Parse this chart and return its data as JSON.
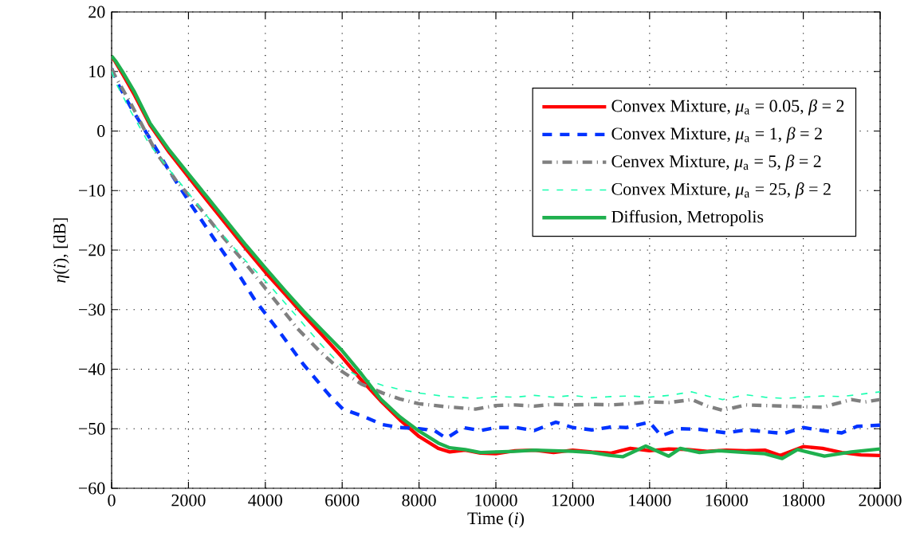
{
  "chart_data": {
    "type": "line",
    "xlabel": "Time (*i*)",
    "ylabel": "*η*(*i*), [dB]",
    "xlim": [
      0,
      20000
    ],
    "ylim": [
      -60,
      20
    ],
    "xticks": [
      0,
      2000,
      4000,
      6000,
      8000,
      10000,
      12000,
      14000,
      16000,
      18000,
      20000
    ],
    "yticks": [
      {
        "value": -60,
        "label": "−60"
      },
      {
        "value": -50,
        "label": "−50"
      },
      {
        "value": -40,
        "label": "−40"
      },
      {
        "value": -30,
        "label": "−30"
      },
      {
        "value": -20,
        "label": "−20"
      },
      {
        "value": -10,
        "label": "−10"
      },
      0,
      10,
      20
    ],
    "grid": true,
    "legend": "top right",
    "marker": "none",
    "series": [
      {
        "name": "Convex Mixture, *μ*$_{a}$ = 0.05, *β* = 2",
        "color": "#ff0000",
        "line_style": "solid",
        "x": [
          0,
          100,
          300,
          600,
          1000,
          1500,
          2000,
          2500,
          3000,
          3500,
          4000,
          4500,
          5000,
          5500,
          6000,
          6500,
          7000,
          7500,
          8000,
          8500,
          8800,
          9200,
          9600,
          10000,
          10500,
          11000,
          11500,
          12000,
          12500,
          13000,
          13500,
          14000,
          14500,
          15000,
          15500,
          16000,
          16500,
          17000,
          17400,
          18000,
          18500,
          19000,
          19500,
          20000
        ],
        "values": [
          12.5,
          11.6,
          9.4,
          6.0,
          1.0,
          -3.6,
          -7.7,
          -11.8,
          -15.8,
          -19.8,
          -23.7,
          -27.3,
          -30.9,
          -34.4,
          -38.0,
          -41.8,
          -45.3,
          -48.5,
          -51.3,
          -53.3,
          -53.9,
          -53.6,
          -54.1,
          -54.2,
          -53.7,
          -53.6,
          -54.0,
          -53.6,
          -53.9,
          -54.1,
          -53.3,
          -53.7,
          -53.4,
          -53.5,
          -53.8,
          -53.6,
          -53.7,
          -53.6,
          -54.5,
          -53.0,
          -53.3,
          -54.0,
          -54.4,
          -54.5
        ]
      },
      {
        "name": "Convex Mixture, *μ*$_{a}$ = 1, *β* = 2",
        "color": "#0033ff",
        "line_style": "dashed",
        "x": [
          0,
          140,
          500,
          1040,
          1500,
          2070,
          2770,
          3300,
          3730,
          4400,
          4980,
          5670,
          6020,
          6500,
          7050,
          7500,
          8000,
          8400,
          8710,
          9150,
          9600,
          10000,
          10520,
          11000,
          11560,
          12000,
          12500,
          13000,
          13400,
          14000,
          14300,
          14800,
          15300,
          16000,
          16500,
          17000,
          17500,
          18000,
          18500,
          19000,
          19400,
          20000
        ],
        "values": [
          10.5,
          8.2,
          4.0,
          -1.7,
          -6.7,
          -12.4,
          -19.1,
          -24.0,
          -28.4,
          -34.0,
          -39.1,
          -44.4,
          -46.7,
          -47.8,
          -49.3,
          -49.8,
          -50.0,
          -50.3,
          -51.6,
          -49.8,
          -50.3,
          -49.8,
          -49.8,
          -50.3,
          -48.9,
          -49.8,
          -50.2,
          -49.7,
          -49.8,
          -48.9,
          -51.2,
          -50.0,
          -50.1,
          -50.7,
          -50.2,
          -50.5,
          -50.8,
          -49.8,
          -50.3,
          -50.7,
          -49.6,
          -49.4
        ]
      },
      {
        "name": "Cenvex Mixture, *μ*$_{a}$ = 5, *β* = 2",
        "color": "#808080",
        "line_style": "dashdot",
        "x": [
          0,
          60,
          500,
          1180,
          1700,
          2280,
          2900,
          3590,
          4200,
          4840,
          5400,
          6000,
          6500,
          7050,
          7500,
          8000,
          8700,
          9470,
          10000,
          10500,
          11000,
          11500,
          12000,
          12500,
          13000,
          13500,
          14000,
          14500,
          15100,
          15500,
          15900,
          16500,
          17000,
          17500,
          18050,
          18500,
          19250,
          19600,
          20000
        ],
        "values": [
          10.5,
          9.6,
          4.6,
          -3.8,
          -8.5,
          -12.8,
          -17.8,
          -23.1,
          -28.0,
          -33.2,
          -36.9,
          -40.4,
          -42.5,
          -44.0,
          -45.0,
          -45.8,
          -46.3,
          -46.7,
          -46.1,
          -46.0,
          -46.2,
          -45.9,
          -46.0,
          -45.9,
          -46.0,
          -45.8,
          -45.5,
          -45.6,
          -45.1,
          -46.2,
          -46.9,
          -46.0,
          -46.1,
          -46.2,
          -46.3,
          -46.4,
          -45.1,
          -45.5,
          -45.1
        ]
      },
      {
        "name": "Convex Mixture, *μ*$_{a}$ = 25, *β* = 2",
        "color": "#1affb0",
        "line_style": "dotted",
        "x": [
          0,
          140,
          500,
          970,
          1500,
          2070,
          2700,
          3400,
          4150,
          4800,
          5400,
          6000,
          6500,
          7050,
          7500,
          8000,
          8700,
          9470,
          10000,
          10500,
          11000,
          11500,
          12000,
          12500,
          13000,
          13500,
          14000,
          14500,
          15100,
          15500,
          15900,
          16500,
          17000,
          17500,
          18000,
          18500,
          19000,
          19500,
          20000
        ],
        "values": [
          10.0,
          7.7,
          3.3,
          -2.1,
          -6.5,
          -11.0,
          -16.0,
          -21.2,
          -26.2,
          -31.0,
          -35.5,
          -39.6,
          -41.5,
          -42.7,
          -43.4,
          -44.0,
          -44.6,
          -44.9,
          -44.6,
          -44.7,
          -44.4,
          -44.7,
          -44.4,
          -44.8,
          -44.6,
          -44.5,
          -44.7,
          -44.4,
          -43.8,
          -44.5,
          -45.1,
          -44.3,
          -44.7,
          -44.9,
          -44.7,
          -44.5,
          -44.6,
          -44.2,
          -43.8
        ]
      },
      {
        "name": "Diffusion, Metropolis",
        "color": "#1fb04e",
        "line_style": "solid",
        "x": [
          0,
          100,
          300,
          600,
          1000,
          1500,
          2000,
          2500,
          3000,
          3500,
          4000,
          4500,
          5000,
          5500,
          6000,
          6500,
          7000,
          7500,
          8000,
          8500,
          8800,
          9200,
          9600,
          10000,
          10500,
          11000,
          11500,
          12000,
          12500,
          13000,
          13300,
          13900,
          14500,
          14800,
          15300,
          15800,
          16500,
          17000,
          17450,
          17850,
          18550,
          19250,
          20000
        ],
        "values": [
          12.6,
          11.8,
          9.8,
          6.5,
          1.3,
          -3.2,
          -7.2,
          -11.2,
          -15.2,
          -19.2,
          -23.0,
          -26.7,
          -30.3,
          -33.6,
          -36.9,
          -40.8,
          -45.0,
          -48.0,
          -50.4,
          -52.4,
          -53.2,
          -53.5,
          -54.0,
          -53.9,
          -53.8,
          -53.6,
          -53.7,
          -53.8,
          -54.0,
          -54.5,
          -54.7,
          -52.9,
          -54.6,
          -53.3,
          -54.0,
          -53.7,
          -54.0,
          -54.2,
          -55.0,
          -53.5,
          -54.6,
          -53.9,
          -53.4
        ]
      }
    ]
  }
}
